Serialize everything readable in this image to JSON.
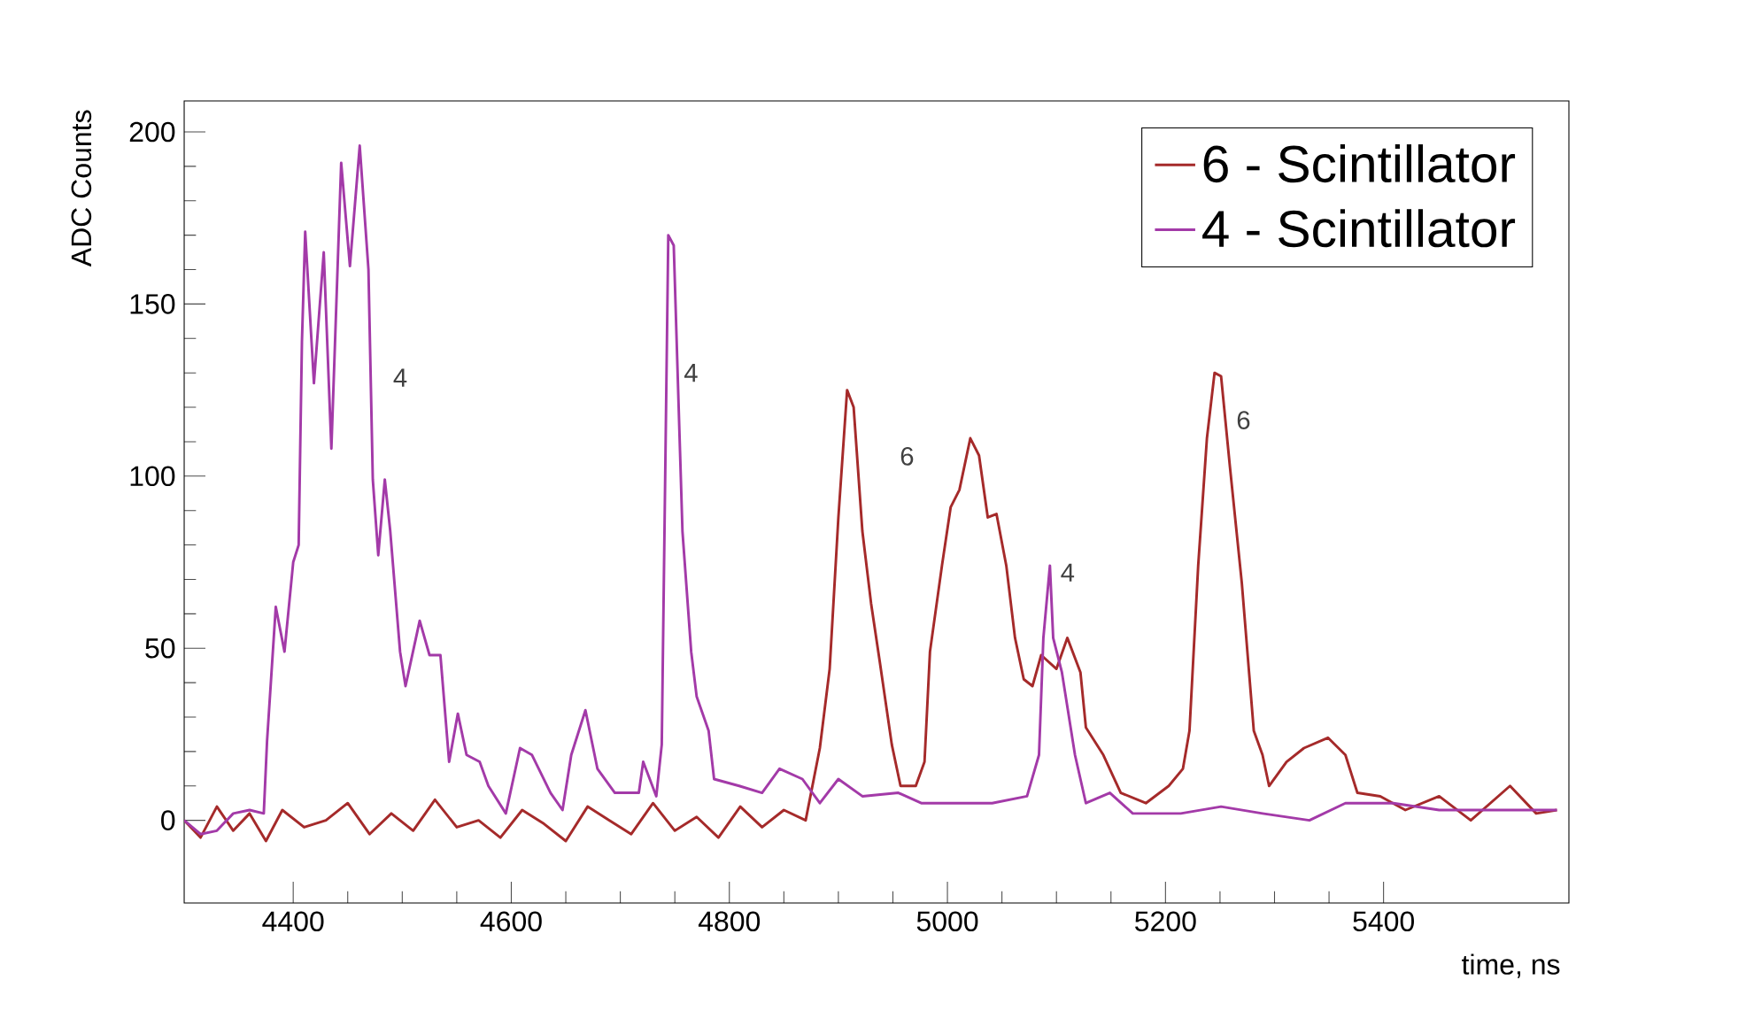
{
  "chart_data": {
    "type": "line",
    "xlabel": "time, ns",
    "ylabel": "ADC Counts",
    "xlim": [
      4300,
      5570
    ],
    "ylim": [
      -24,
      209
    ],
    "xticks": [
      4400,
      4600,
      4800,
      5000,
      5200,
      5400
    ],
    "yticks": [
      0,
      50,
      100,
      150,
      200
    ],
    "legend": "top right",
    "series": [
      {
        "name": "6 - Scintillator",
        "color": "#a52a2a",
        "x": [
          4300,
          4315,
          4330,
          4345,
          4360,
          4375,
          4390,
          4410,
          4430,
          4450,
          4470,
          4490,
          4510,
          4530,
          4550,
          4570,
          4590,
          4610,
          4630,
          4650,
          4670,
          4690,
          4710,
          4730,
          4750,
          4770,
          4790,
          4810,
          4830,
          4850,
          4870,
          4883,
          4892,
          4900,
          4908,
          4914,
          4922,
          4930,
          4938,
          4949,
          4957,
          4971,
          4979,
          4984,
          4995,
          5003,
          5011,
          5021,
          5029,
          5037,
          5045,
          5054,
          5062,
          5070,
          5078,
          5086,
          5100,
          5110,
          5122,
          5127,
          5143,
          5159,
          5182,
          5203,
          5216,
          5222,
          5230,
          5238,
          5245,
          5251,
          5259,
          5270,
          5281,
          5289,
          5295,
          5311,
          5327,
          5349,
          5365,
          5376,
          5397,
          5420,
          5451,
          5480,
          5516,
          5540,
          5559
        ],
        "values": [
          0,
          -5,
          4,
          -3,
          2,
          -6,
          3,
          -2,
          0,
          5,
          -4,
          2,
          -3,
          6,
          -2,
          0,
          -5,
          3,
          -1,
          -6,
          4,
          0,
          -4,
          5,
          -3,
          1,
          -5,
          4,
          -2,
          3,
          0,
          21,
          44,
          88,
          125,
          120,
          84,
          63,
          46,
          22,
          10,
          10,
          17,
          49,
          74,
          91,
          96,
          111,
          106,
          88,
          89,
          74,
          53,
          41,
          39,
          48,
          44,
          53,
          43,
          27,
          19,
          8,
          5,
          10,
          15,
          26,
          74,
          111,
          130,
          129,
          103,
          69,
          26,
          19,
          10,
          17,
          21,
          24,
          19,
          8,
          7,
          3,
          7,
          0,
          10,
          2,
          3
        ]
      },
      {
        "name": "4 - Scintillator",
        "color": "#a33aa8",
        "x": [
          4300,
          4315,
          4330,
          4345,
          4360,
          4373,
          4376,
          4384,
          4392,
          4400,
          4405,
          4408,
          4411,
          4419,
          4428,
          4435,
          4444,
          4452,
          4461,
          4469,
          4473,
          4478,
          4484,
          4489,
          4498,
          4503,
          4516,
          4525,
          4535,
          4543,
          4551,
          4559,
          4571,
          4579,
          4595,
          4608,
          4619,
          4636,
          4647,
          4655,
          4668,
          4679,
          4695,
          4717,
          4721,
          4733,
          4738,
          4744,
          4749,
          4757,
          4765,
          4770,
          4781,
          4786,
          4809,
          4830,
          4846,
          4867,
          4883,
          4900,
          4922,
          4955,
          4976,
          5008,
          5041,
          5073,
          5084,
          5088,
          5094,
          5097,
          5105,
          5117,
          5127,
          5149,
          5170,
          5214,
          5251,
          5289,
          5332,
          5365,
          5409,
          5451,
          5506,
          5559
        ],
        "values": [
          0,
          -4,
          -3,
          2,
          3,
          2,
          23,
          62,
          49,
          75,
          80,
          139,
          171,
          127,
          165,
          108,
          191,
          161,
          196,
          160,
          99,
          77,
          99,
          84,
          49,
          39,
          58,
          48,
          48,
          17,
          31,
          19,
          17,
          10,
          2,
          21,
          19,
          8,
          3,
          19,
          32,
          15,
          8,
          8,
          17,
          7,
          22,
          170,
          167,
          84,
          49,
          36,
          26,
          12,
          10,
          8,
          15,
          12,
          5,
          12,
          7,
          8,
          5,
          5,
          5,
          7,
          19,
          53,
          74,
          53,
          43,
          19,
          5,
          8,
          2,
          2,
          4,
          2,
          0,
          5,
          5,
          3,
          3,
          3
        ]
      }
    ],
    "annotations": [
      "4",
      "4",
      "6",
      "4",
      "6"
    ]
  }
}
